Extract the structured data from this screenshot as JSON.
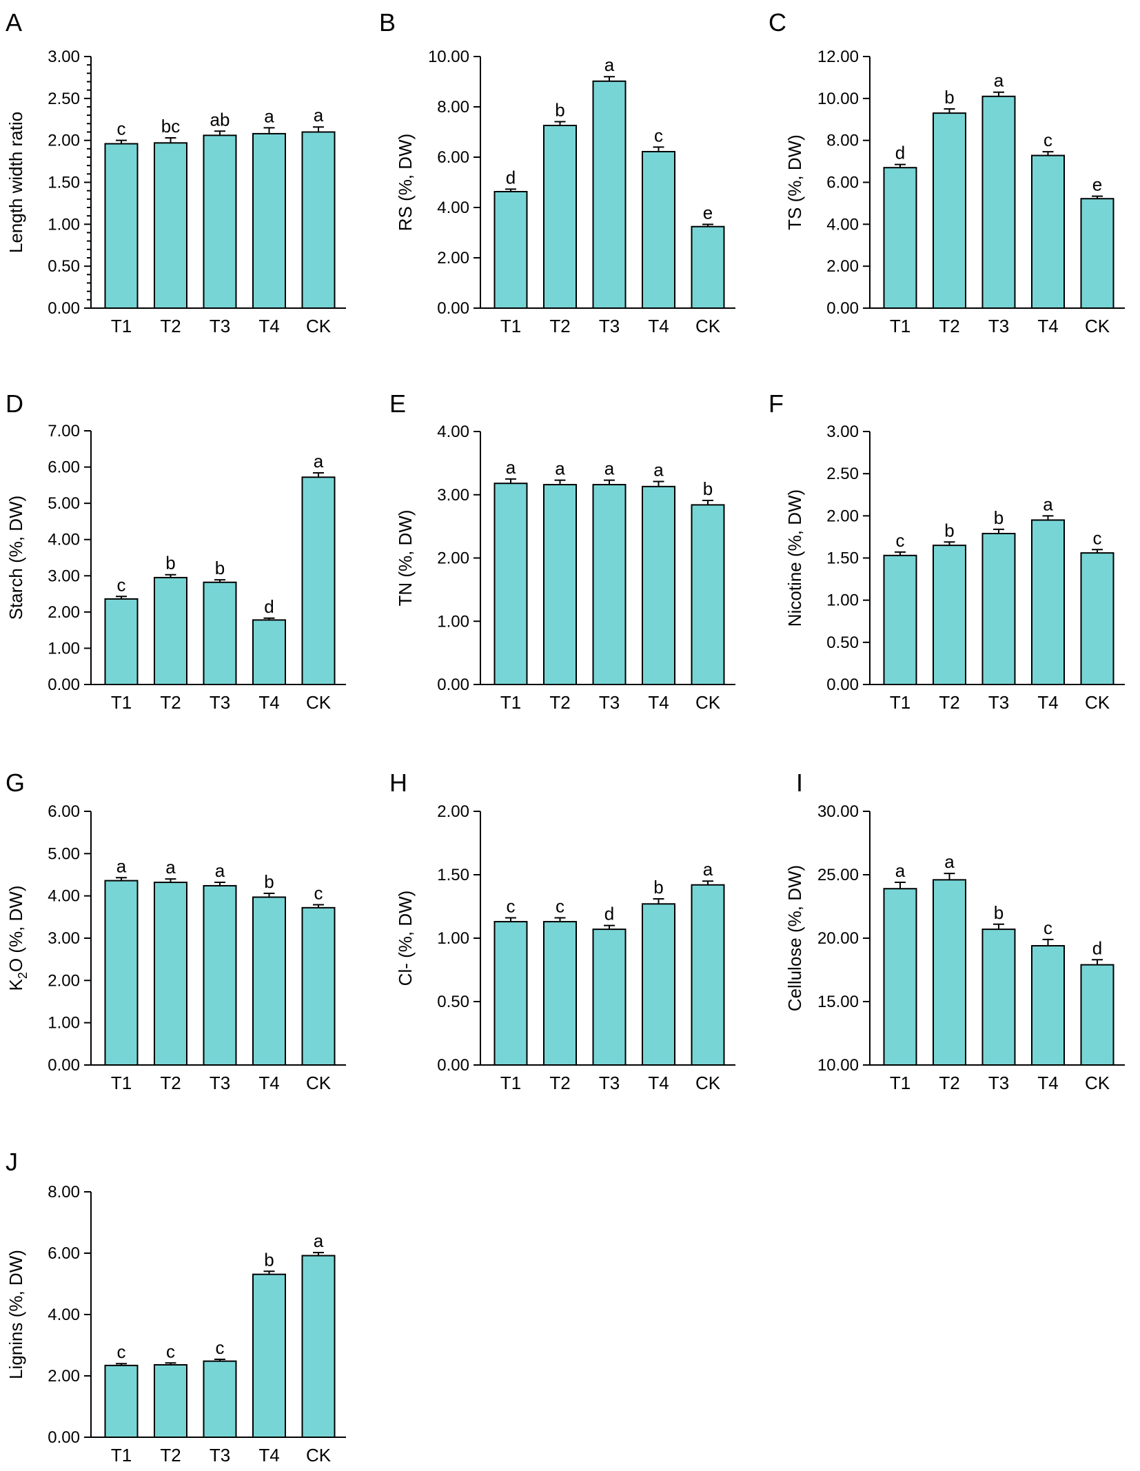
{
  "colors": {
    "bar_fill": "#78d5d6",
    "stroke": "#000000"
  },
  "chart_data": [
    {
      "type": "bar",
      "panel": "A",
      "ylabel": "Length width ratio",
      "ylim": [
        0,
        3
      ],
      "y_ticks": [
        "0.00",
        "0.50",
        "1.00",
        "1.50",
        "2.00",
        "2.50",
        "3.00"
      ],
      "minor_ticks": true,
      "categories": [
        "T1",
        "T2",
        "T3",
        "T4",
        "CK"
      ],
      "values": [
        1.96,
        1.97,
        2.06,
        2.08,
        2.1
      ],
      "errors": [
        0.04,
        0.06,
        0.05,
        0.07,
        0.06
      ],
      "labels": [
        "c",
        "bc",
        "ab",
        "a",
        "a"
      ]
    },
    {
      "type": "bar",
      "panel": "B",
      "ylabel": "RS (%, DW)",
      "ylim": [
        0,
        10
      ],
      "y_ticks": [
        "0.00",
        "2.00",
        "4.00",
        "6.00",
        "8.00",
        "10.00"
      ],
      "minor_ticks": false,
      "categories": [
        "T1",
        "T2",
        "T3",
        "T4",
        "CK"
      ],
      "values": [
        4.63,
        7.26,
        9.02,
        6.22,
        3.24
      ],
      "errors": [
        0.1,
        0.15,
        0.18,
        0.18,
        0.09
      ],
      "labels": [
        "d",
        "b",
        "a",
        "c",
        "e"
      ]
    },
    {
      "type": "bar",
      "panel": "C",
      "ylabel": "TS (%, DW)",
      "ylim": [
        0,
        12
      ],
      "y_ticks": [
        "0.00",
        "2.00",
        "4.00",
        "6.00",
        "8.00",
        "10.00",
        "12.00"
      ],
      "minor_ticks": false,
      "categories": [
        "T1",
        "T2",
        "T3",
        "T4",
        "CK"
      ],
      "values": [
        6.7,
        9.3,
        10.1,
        7.28,
        5.22
      ],
      "errors": [
        0.15,
        0.2,
        0.2,
        0.18,
        0.12
      ],
      "labels": [
        "d",
        "b",
        "a",
        "c",
        "e"
      ]
    },
    {
      "type": "bar",
      "panel": "D",
      "ylabel": "Starch (%, DW)",
      "ylim": [
        0,
        7
      ],
      "y_ticks": [
        "0.00",
        "1.00",
        "2.00",
        "3.00",
        "4.00",
        "5.00",
        "6.00",
        "7.00"
      ],
      "minor_ticks": false,
      "categories": [
        "T1",
        "T2",
        "T3",
        "T4",
        "CK"
      ],
      "values": [
        2.36,
        2.95,
        2.82,
        1.78,
        5.72
      ],
      "errors": [
        0.07,
        0.08,
        0.07,
        0.05,
        0.12
      ],
      "labels": [
        "c",
        "b",
        "b",
        "d",
        "a"
      ]
    },
    {
      "type": "bar",
      "panel": "E",
      "ylabel": "TN (%, DW)",
      "ylim": [
        0,
        4
      ],
      "y_ticks": [
        "0.00",
        "1.00",
        "2.00",
        "3.00",
        "4.00"
      ],
      "minor_ticks": false,
      "categories": [
        "T1",
        "T2",
        "T3",
        "T4",
        "CK"
      ],
      "values": [
        3.18,
        3.16,
        3.16,
        3.13,
        2.84
      ],
      "errors": [
        0.07,
        0.07,
        0.07,
        0.08,
        0.07
      ],
      "labels": [
        "a",
        "a",
        "a",
        "a",
        "b"
      ]
    },
    {
      "type": "bar",
      "panel": "F",
      "ylabel": "Nicotine (%, DW)",
      "ylim": [
        0,
        3
      ],
      "y_ticks": [
        "0.00",
        "0.50",
        "1.00",
        "1.50",
        "2.00",
        "2.50",
        "3.00"
      ],
      "minor_ticks": false,
      "categories": [
        "T1",
        "T2",
        "T3",
        "T4",
        "CK"
      ],
      "values": [
        1.53,
        1.65,
        1.79,
        1.95,
        1.56
      ],
      "errors": [
        0.04,
        0.04,
        0.05,
        0.05,
        0.04
      ],
      "labels": [
        "c",
        "b",
        "b",
        "a",
        "c"
      ]
    },
    {
      "type": "bar",
      "panel": "G",
      "ylabel": "K2O (%, DW)",
      "ylabel_parts": [
        "K",
        "2",
        "O (%, DW)"
      ],
      "ylim": [
        0,
        6
      ],
      "y_ticks": [
        "0.00",
        "1.00",
        "2.00",
        "3.00",
        "4.00",
        "5.00",
        "6.00"
      ],
      "minor_ticks": false,
      "categories": [
        "T1",
        "T2",
        "T3",
        "T4",
        "CK"
      ],
      "values": [
        4.36,
        4.32,
        4.24,
        3.97,
        3.72
      ],
      "errors": [
        0.07,
        0.08,
        0.08,
        0.09,
        0.07
      ],
      "labels": [
        "a",
        "a",
        "a",
        "b",
        "c"
      ]
    },
    {
      "type": "bar",
      "panel": "H",
      "ylabel": "Cl- (%, DW)",
      "ylim": [
        0,
        2
      ],
      "y_ticks": [
        "0.00",
        "0.50",
        "1.00",
        "1.50",
        "2.00"
      ],
      "minor_ticks": false,
      "categories": [
        "T1",
        "T2",
        "T3",
        "T4",
        "CK"
      ],
      "values": [
        1.13,
        1.13,
        1.07,
        1.27,
        1.42
      ],
      "errors": [
        0.03,
        0.03,
        0.03,
        0.04,
        0.03
      ],
      "labels": [
        "c",
        "c",
        "d",
        "b",
        "a"
      ]
    },
    {
      "type": "bar",
      "panel": "I",
      "ylabel": "Cellulose (%, DW)",
      "ylim": [
        10,
        30
      ],
      "y_ticks": [
        "10.00",
        "15.00",
        "20.00",
        "25.00",
        "30.00"
      ],
      "minor_ticks": false,
      "categories": [
        "T1",
        "T2",
        "T3",
        "T4",
        "CK"
      ],
      "values": [
        23.9,
        24.6,
        20.7,
        19.4,
        17.9
      ],
      "errors": [
        0.5,
        0.5,
        0.4,
        0.5,
        0.4
      ],
      "labels": [
        "a",
        "a",
        "b",
        "c",
        "d"
      ]
    },
    {
      "type": "bar",
      "panel": "J",
      "ylabel": "Lignins  (%, DW)",
      "ylim": [
        0,
        8
      ],
      "y_ticks": [
        "0.00",
        "2.00",
        "4.00",
        "6.00",
        "8.00"
      ],
      "minor_ticks": false,
      "categories": [
        "T1",
        "T2",
        "T3",
        "T4",
        "CK"
      ],
      "values": [
        2.34,
        2.36,
        2.48,
        5.31,
        5.92
      ],
      "errors": [
        0.06,
        0.06,
        0.06,
        0.1,
        0.1
      ],
      "labels": [
        "c",
        "c",
        "c",
        "b",
        "a"
      ]
    }
  ]
}
